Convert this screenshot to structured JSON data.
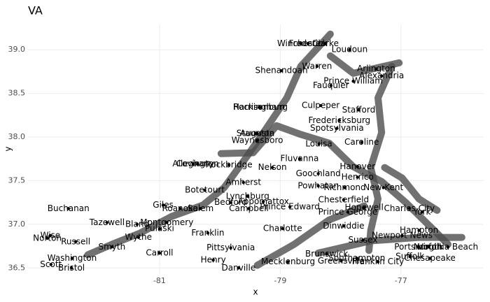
{
  "chart_data": {
    "type": "scatter",
    "title": "VA",
    "x_label": "x",
    "y_label": "y",
    "xlim": [
      -83.18,
      -75.64
    ],
    "ylim": [
      36.43,
      39.29
    ],
    "xticks": [
      -81,
      -79,
      -77
    ],
    "yticks": [
      36.5,
      {
        "value": 37,
        "label": "37.0"
      },
      37.5,
      {
        "value": 38,
        "label": "38.0"
      },
      38.5,
      {
        "value": 39,
        "label": "39.0"
      }
    ],
    "grid": true,
    "point_color": "#000000",
    "line_color": "#4d4d4d",
    "lines": [
      {
        "x": [
          -82.19,
          -81.79,
          -81.32,
          -80.8,
          -80.28,
          -79.93,
          -79.56,
          -79.24,
          -78.89,
          -78.66,
          -78.17
        ],
        "y": [
          36.65,
          36.77,
          36.9,
          37.09,
          37.22,
          37.42,
          37.77,
          38.09,
          38.45,
          38.81,
          39.18
        ]
      },
      {
        "x": [
          -79.98,
          -79.45,
          -79.06,
          -78.66,
          -78.19,
          -77.79,
          -77.32,
          -76.92,
          -76.45,
          -76.22
        ],
        "y": [
          37.81,
          37.82,
          38.13,
          38.03,
          37.93,
          37.66,
          37.49,
          37.25,
          36.93,
          36.77
        ]
      },
      {
        "x": [
          -77.53,
          -77.5,
          -77.38,
          -77.5,
          -77.32,
          -77.38,
          -77.15
        ],
        "y": [
          36.7,
          36.93,
          37.29,
          37.65,
          38.05,
          38.45,
          38.81
        ]
      },
      {
        "x": [
          -79.38,
          -78.77,
          -78.19,
          -77.61
        ],
        "y": [
          36.53,
          36.77,
          37.05,
          37.21
        ]
      },
      {
        "x": [
          -78.17,
          -77.79,
          -77.03
        ],
        "y": [
          38.93,
          38.73,
          38.85
        ]
      },
      {
        "x": [
          -77.27,
          -76.98,
          -76.7,
          -76.4
        ],
        "y": [
          37.65,
          37.53,
          37.29,
          37.16
        ]
      },
      {
        "x": [
          -78.37,
          -77.5,
          -76.69,
          -75.99
        ],
        "y": [
          36.67,
          36.81,
          36.85,
          36.85
        ]
      }
    ],
    "points": {
      "labels": [
        "Winchester",
        "Frederick",
        "Clarke",
        "Loudoun",
        "Warren",
        "Shenandoah",
        "Arlington",
        "Alexandria",
        "Prince William",
        "Fauquier",
        "Rockingham",
        "Harrisonburg",
        "Culpeper",
        "Stafford",
        "Fredericksburg",
        "Spotsylvania",
        "Staunton",
        "Augusta",
        "Waynesboro",
        "Louisa",
        "Caroline",
        "Fluvanna",
        "Alleghany",
        "Covington",
        "Rockbridge",
        "Nelson",
        "Goochland",
        "Hanover",
        "Henrico",
        "Amherst",
        "Powhatan",
        "Richmond",
        "New Kent",
        "Botetourt",
        "Lynchburg",
        "Chesterfield",
        "Bedford",
        "Roanoke",
        "Salem",
        "Giles",
        "Prince Edward",
        "Appomattox",
        "Campbell",
        "Hopewell",
        "Charles City",
        "Prince George",
        "Buchanan",
        "Tazewell",
        "Bland",
        "Montgomery",
        "Pulaski",
        "Wise",
        "Norton",
        "Russell",
        "Wythe",
        "Franklin",
        "Charlotte",
        "Dinwiddie",
        "Hampton",
        "Newport News",
        "York",
        "Smyth",
        "Washington",
        "Bristol",
        "Scott",
        "Carroll",
        "Pittsylvania",
        "Henry",
        "Danville",
        "Mecklenburg",
        "Brunswick",
        "Greensville",
        "Southampton",
        "Franklin City",
        "Suffolk",
        "Chesapeake",
        "Portsmouth",
        "Norfolk",
        "Virginia Beach",
        "Sussex"
      ],
      "x": [
        -78.66,
        -78.54,
        -78.25,
        -77.85,
        -78.39,
        -78.98,
        -77.41,
        -77.32,
        -77.79,
        -78.16,
        -79.35,
        -79.33,
        -78.33,
        -77.7,
        -78.02,
        -78.06,
        -79.41,
        -79.38,
        -79.38,
        -78.36,
        -77.65,
        -78.68,
        -80.44,
        -80.37,
        -79.85,
        -79.13,
        -78.37,
        -77.72,
        -77.72,
        -79.61,
        -78.37,
        -77.93,
        -77.29,
        -80.25,
        -79.54,
        -77.95,
        -79.82,
        -80.66,
        -80.32,
        -80.94,
        -78.84,
        -79.28,
        -79.52,
        -77.61,
        -76.86,
        -77.88,
        -82.51,
        -81.87,
        -81.37,
        -80.88,
        -81.0,
        -82.81,
        -82.86,
        -82.39,
        -81.35,
        -80.2,
        -78.96,
        -77.95,
        -76.7,
        -76.98,
        -76.65,
        -81.79,
        -82.45,
        -82.46,
        -82.8,
        -81.0,
        -79.82,
        -80.11,
        -79.69,
        -78.87,
        -78.23,
        -77.99,
        -77.73,
        -77.38,
        -76.85,
        -76.52,
        -76.71,
        -76.54,
        -76.22,
        -77.63
      ],
      "y": [
        39.07,
        39.07,
        39.07,
        39.0,
        38.81,
        38.76,
        38.78,
        38.7,
        38.64,
        38.59,
        38.34,
        38.34,
        38.36,
        38.31,
        38.19,
        38.1,
        38.04,
        38.04,
        37.96,
        37.92,
        37.94,
        37.75,
        37.69,
        37.69,
        37.68,
        37.65,
        37.58,
        37.66,
        37.54,
        37.48,
        37.44,
        37.42,
        37.42,
        37.39,
        37.32,
        37.28,
        37.25,
        37.18,
        37.18,
        37.22,
        37.2,
        37.26,
        37.18,
        37.19,
        37.18,
        37.14,
        37.18,
        37.02,
        37.0,
        37.02,
        36.95,
        36.87,
        36.84,
        36.8,
        36.85,
        36.9,
        36.95,
        36.98,
        36.93,
        36.87,
        37.14,
        36.74,
        36.61,
        36.5,
        36.54,
        36.67,
        36.73,
        36.59,
        36.5,
        36.57,
        36.66,
        36.58,
        36.61,
        36.57,
        36.63,
        36.61,
        36.74,
        36.74,
        36.74,
        36.82
      ]
    }
  }
}
